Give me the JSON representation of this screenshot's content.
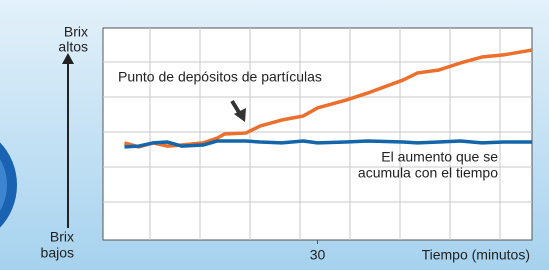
{
  "chart_data": {
    "type": "line",
    "y_label_high": [
      "Brix",
      "altos"
    ],
    "y_label_low": [
      "Brix",
      "bajos"
    ],
    "xlabel": "Tiempo (minutos)",
    "annotations": [
      {
        "lines": [
          "Punto de depósitos de partículas"
        ]
      },
      {
        "lines": [
          "El aumento que se",
          "acumula con el tiempo"
        ]
      }
    ],
    "x": [
      3,
      5,
      7,
      9,
      11,
      14,
      16,
      17,
      20,
      22,
      25,
      28,
      30,
      34,
      37,
      42,
      44,
      47,
      50,
      53,
      56,
      60
    ],
    "series": [
      {
        "color": "#ec6f2d",
        "values": [
          45.8,
          43.9,
          45.8,
          44.3,
          44.8,
          45.8,
          48.1,
          50,
          50.5,
          53.8,
          56.6,
          58.5,
          62.3,
          66,
          69.3,
          75.5,
          78.8,
          80.2,
          83.5,
          86.3,
          87.3,
          89.6
        ]
      },
      {
        "color": "#1466ab",
        "values": [
          43.9,
          44.3,
          45.8,
          46.2,
          44.3,
          44.8,
          46.7,
          46.7,
          46.7,
          46.2,
          45.8,
          46.7,
          45.8,
          46.2,
          46.7,
          46.2,
          45.8,
          46.2,
          46.7,
          45.8,
          46.2,
          46.2
        ]
      }
    ],
    "xlim": [
      0,
      60
    ],
    "ylim": [
      0,
      100
    ],
    "xticks": [
      30
    ]
  }
}
